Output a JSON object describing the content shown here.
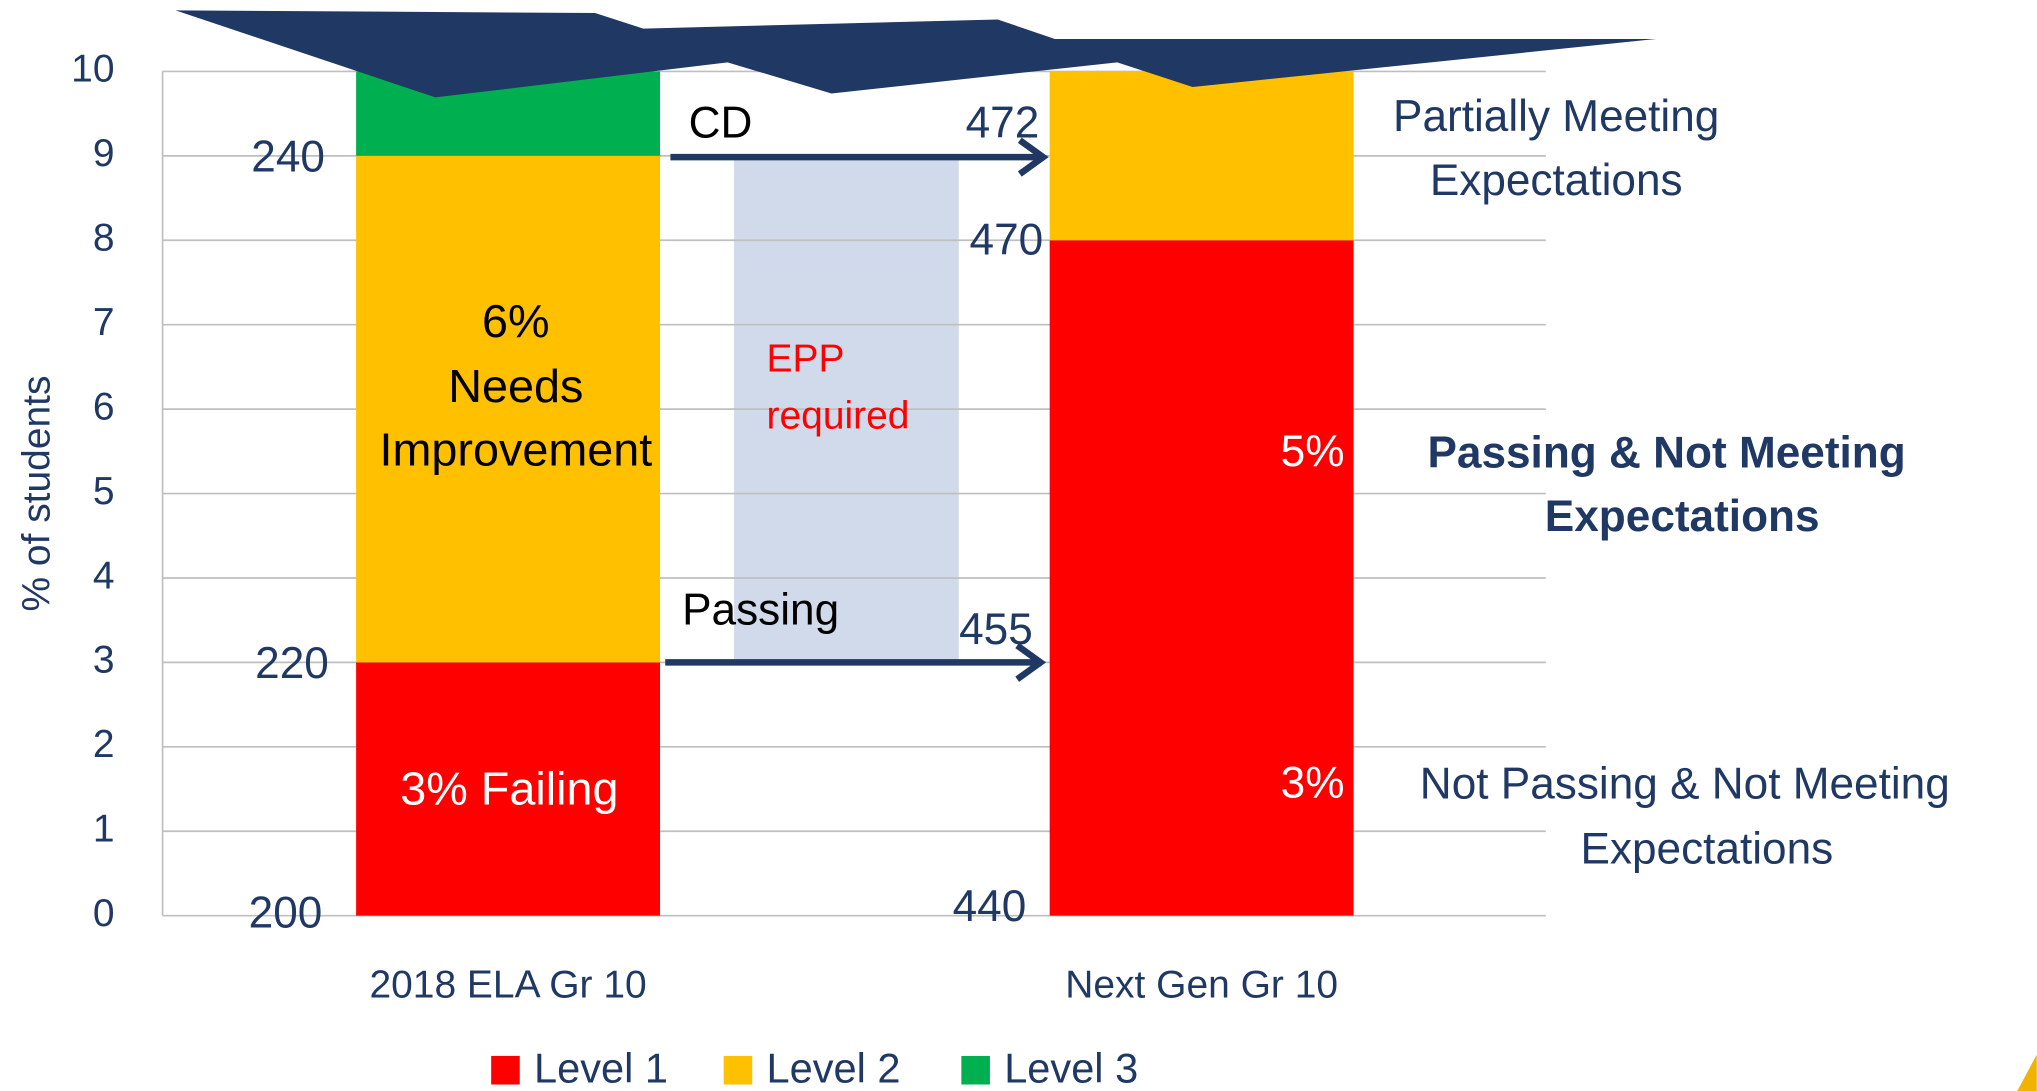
{
  "chart_data": {
    "type": "stacked-bar",
    "y_axis_label": "% of students",
    "categories": [
      "2018 ELA Gr 10",
      "Next Gen Gr 10"
    ],
    "series": [
      {
        "name": "Level 1",
        "color": "#ff0000",
        "values": [
          3,
          8
        ]
      },
      {
        "name": "Level 2",
        "color": "#ffc000",
        "values": [
          6,
          2
        ]
      },
      {
        "name": "Level 3",
        "color": "#00b050",
        "values": [
          1,
          0
        ]
      }
    ],
    "ylim": [
      0,
      10
    ],
    "yticks": [
      0,
      1,
      2,
      3,
      4,
      5,
      6,
      7,
      8,
      9,
      10
    ],
    "grid": true,
    "annotations": [
      "240",
      "220",
      "200",
      "472",
      "470",
      "455",
      "440",
      "CD",
      "Passing",
      "EPP",
      "required",
      "6%",
      "Needs",
      "Improvement",
      "3% Failing",
      "5%",
      "3%",
      "Partially Meeting",
      "Expectations",
      "Passing & Not Meeting",
      "Expectations",
      "Not Passing & Not Meeting",
      "Expectations"
    ]
  }
}
